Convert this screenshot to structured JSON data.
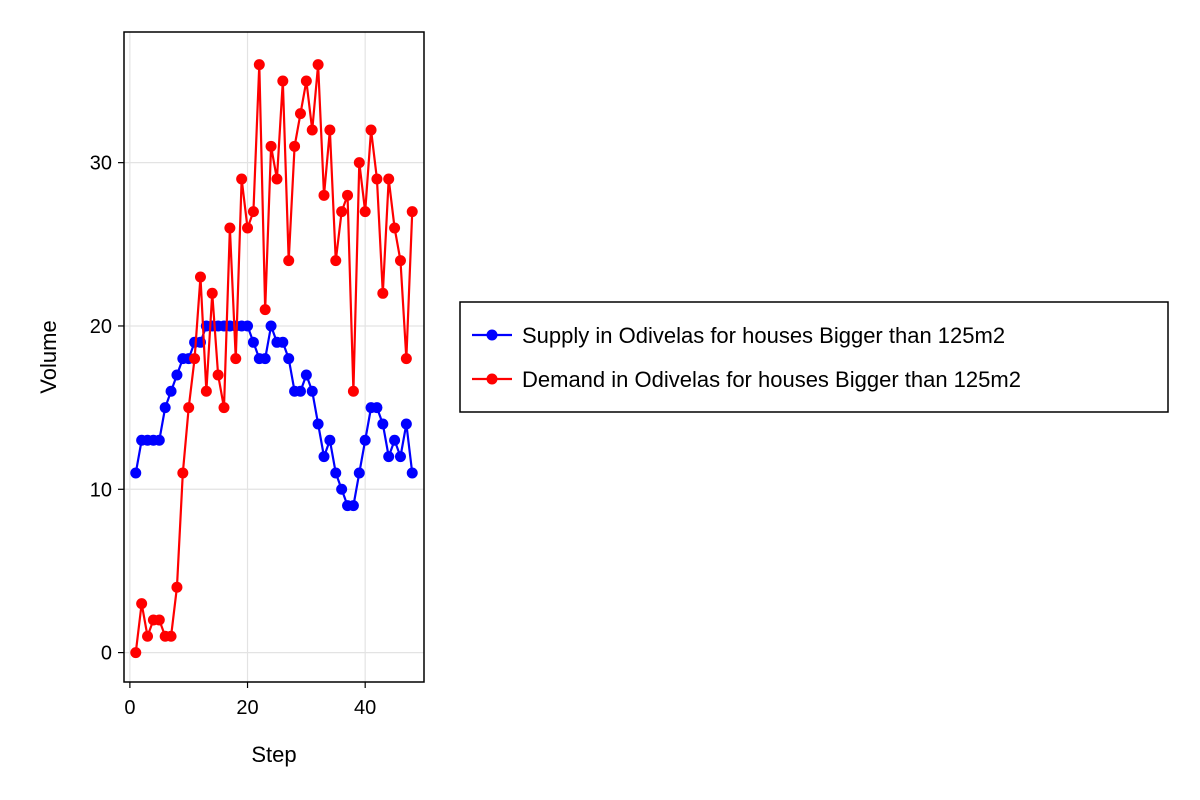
{
  "chart_data": {
    "type": "line",
    "title": "",
    "xlabel": "Step",
    "ylabel": "Volume",
    "xlim": [
      -1,
      50
    ],
    "ylim": [
      -1.8,
      38
    ],
    "xticks": [
      0,
      20,
      40
    ],
    "yticks": [
      0,
      10,
      20,
      30
    ],
    "grid": true,
    "legend_position": "right",
    "series": [
      {
        "name": "Supply in Odivelas for houses Bigger than 125m2",
        "color": "#0000ff",
        "x": [
          1,
          2,
          3,
          4,
          5,
          6,
          7,
          8,
          9,
          10,
          11,
          12,
          13,
          14,
          15,
          16,
          17,
          18,
          19,
          20,
          21,
          22,
          23,
          24,
          25,
          26,
          27,
          28,
          29,
          30,
          31,
          32,
          33,
          34,
          35,
          36,
          37,
          38,
          39,
          40,
          41,
          42,
          43,
          44,
          45,
          46,
          47,
          48
        ],
        "y": [
          11,
          13,
          13,
          13,
          13,
          15,
          16,
          17,
          18,
          18,
          19,
          19,
          20,
          20,
          20,
          20,
          20,
          20,
          20,
          20,
          19,
          18,
          18,
          20,
          19,
          19,
          18,
          16,
          16,
          17,
          16,
          14,
          12,
          13,
          11,
          10,
          9,
          9,
          11,
          13,
          15,
          15,
          14,
          12,
          13,
          12,
          14,
          11
        ]
      },
      {
        "name": "Demand in Odivelas for houses Bigger than 125m2",
        "color": "#ff0000",
        "x": [
          1,
          2,
          3,
          4,
          5,
          6,
          7,
          8,
          9,
          10,
          11,
          12,
          13,
          14,
          15,
          16,
          17,
          18,
          19,
          20,
          21,
          22,
          23,
          24,
          25,
          26,
          27,
          28,
          29,
          30,
          31,
          32,
          33,
          34,
          35,
          36,
          37,
          38,
          39,
          40,
          41,
          42,
          43,
          44,
          45,
          46,
          47,
          48
        ],
        "y": [
          0,
          3,
          1,
          2,
          2,
          1,
          1,
          4,
          11,
          15,
          18,
          23,
          16,
          22,
          17,
          15,
          26,
          18,
          29,
          26,
          27,
          36,
          21,
          31,
          29,
          35,
          24,
          31,
          33,
          35,
          32,
          36,
          28,
          32,
          24,
          27,
          28,
          16,
          30,
          27,
          32,
          29,
          22,
          29,
          26,
          24,
          18,
          27
        ]
      }
    ]
  }
}
